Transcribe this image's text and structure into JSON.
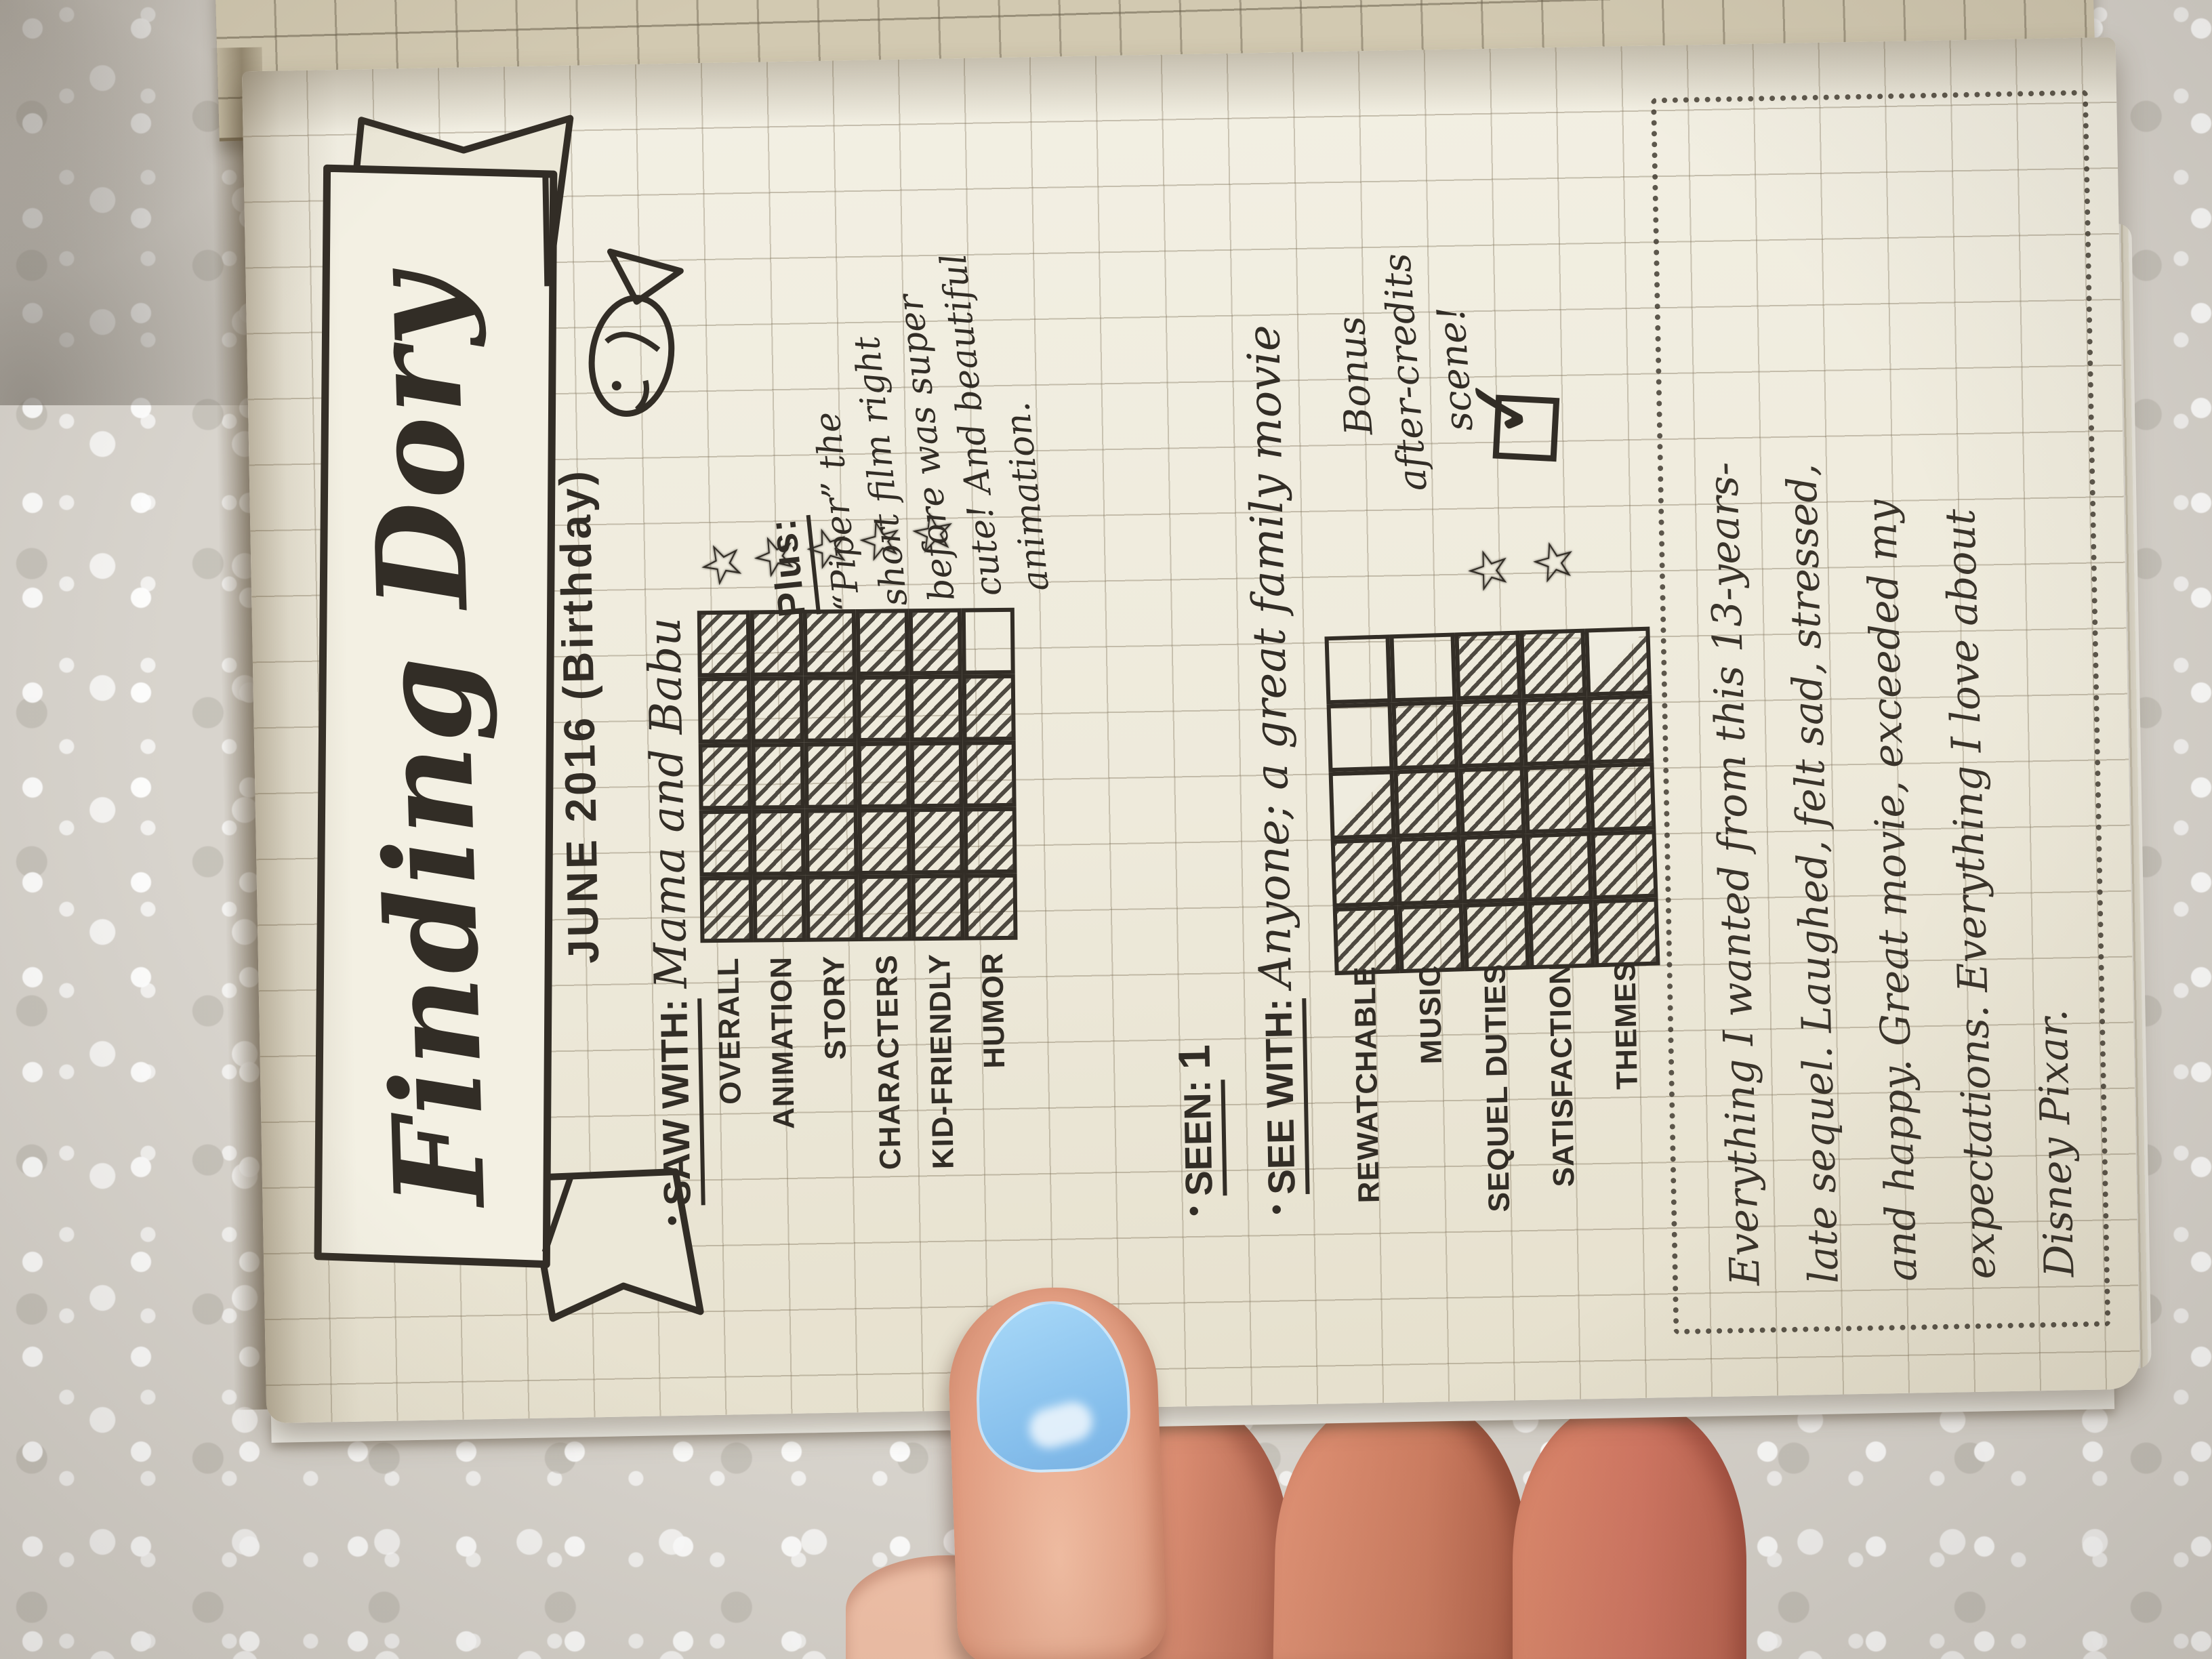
{
  "banner": {
    "title": "Finding Dory"
  },
  "meta": {
    "bullet": "•",
    "date_line": "JUNE 2016 (Birthday)",
    "saw_with_label": "SAW WITH:",
    "saw_with_value": "Mama and Babu",
    "seen_label": "SEEN:",
    "seen_value": "1",
    "see_with_label": "SEE WITH:",
    "see_with_value": "Anyone; a great family movie"
  },
  "plus_note": {
    "label": "Plus:",
    "lines": [
      "“Piper” the",
      "short film right",
      "before was super",
      "cute! And beautiful",
      "animation."
    ]
  },
  "ratings_main": {
    "max": 5,
    "rows": [
      {
        "label": "OVERALL",
        "score": 5,
        "star": true
      },
      {
        "label": "ANIMATION",
        "score": 5,
        "star": true
      },
      {
        "label": "STORY",
        "score": 5,
        "star": true
      },
      {
        "label": "CHARACTERS",
        "score": 5,
        "star": true
      },
      {
        "label": "KID-FRIENDLY",
        "score": 5,
        "star": true
      },
      {
        "label": "HUMOR",
        "score": 4,
        "star": false
      }
    ]
  },
  "ratings_extra": {
    "max": 5,
    "rows": [
      {
        "label": "REWATCHABLE",
        "score": 2.5,
        "star": false
      },
      {
        "label": "MUSIC",
        "score": 4,
        "star": false
      },
      {
        "label": "SEQUEL DUTIES",
        "score": 5,
        "star": true
      },
      {
        "label": "SATISFACTION",
        "score": 5,
        "star": true
      },
      {
        "label": "THEMES",
        "score": 4.5,
        "star": false
      }
    ]
  },
  "bonus": {
    "line1": "Bonus",
    "line2": "after-credits",
    "line3": "scene!",
    "checked": true
  },
  "review": {
    "lines": [
      "Everything I wanted from this 13-years-",
      "late sequel. Laughed, felt sad, stressed,",
      "and happy. Great movie, exceeded my",
      "expectations. Everything I love about",
      "Disney Pixar."
    ]
  },
  "icons": {
    "star": "☆",
    "check": "✓"
  },
  "colors": {
    "ink": "#322d26",
    "paper": "#f1eedf",
    "paper_under": "#d3cab2",
    "nail_polish": "#8cc3ee",
    "blanket": "#d8d4cd"
  }
}
